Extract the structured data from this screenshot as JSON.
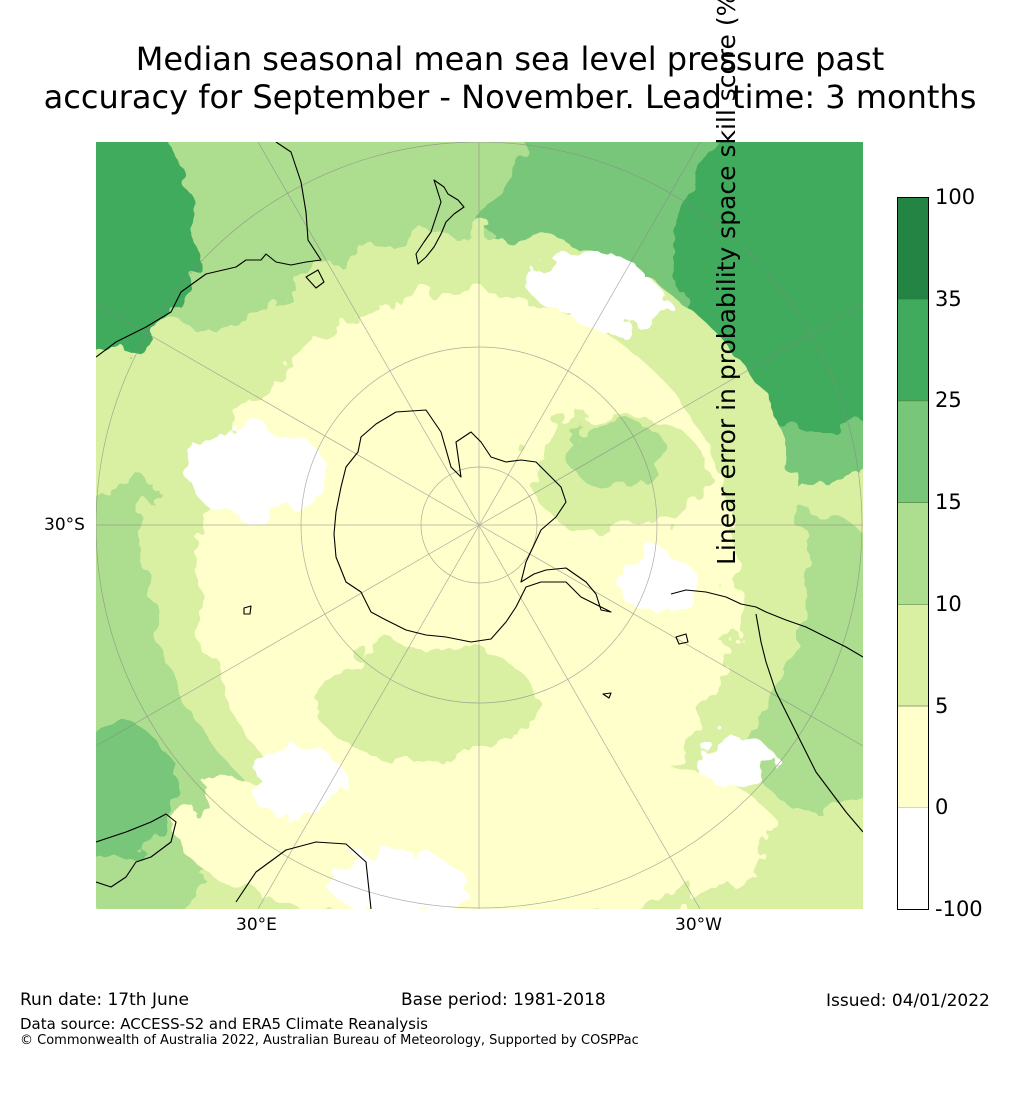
{
  "title_line1": "Median seasonal mean sea level pressure past",
  "title_line2": "accuracy for September - November. Lead time: 3 months",
  "map": {
    "lat_label": "30°S",
    "lon_labels": [
      "30°E",
      "30°W"
    ]
  },
  "colorbar": {
    "label": "Linear error in probability space skill score (%)",
    "ticks": [
      "100",
      "35",
      "25",
      "15",
      "10",
      "5",
      "0",
      "-100"
    ],
    "colors": [
      "#238443",
      "#41ab5d",
      "#78c679",
      "#addd8e",
      "#d9f0a3",
      "#ffffcc",
      "#ffffff"
    ]
  },
  "colors": {
    "land_outline": "#000000",
    "grid": "#888888"
  },
  "footer": {
    "run_date": "Run date: 17th June",
    "base_period": "Base period: 1981-2018",
    "issued": "Issued: 04/01/2022",
    "data_source": "Data source: ACCESS-S2 and ERA5 Climate Reanalysis",
    "copyright": "© Commonwealth of Australia 2022, Australian Bureau of Meteorology, Supported by COSPPac"
  }
}
